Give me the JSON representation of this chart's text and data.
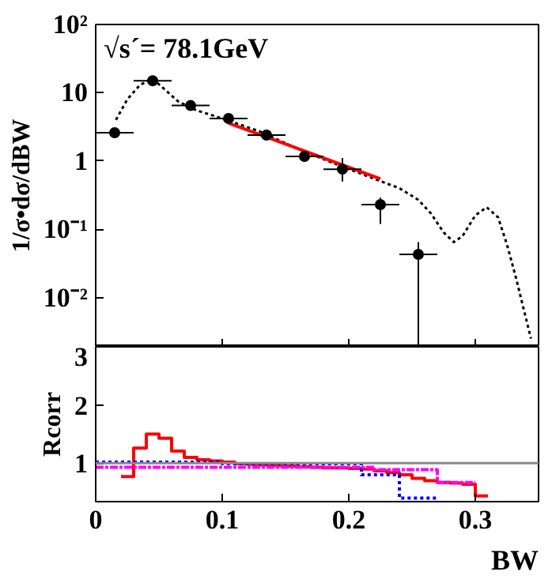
{
  "chart_data": [
    {
      "type": "scatter",
      "ylabel": "1/σ•dσ/dBW",
      "annotations": [
        "√s´= 78.1GeV"
      ],
      "log": "y",
      "xlim": [
        0,
        0.35
      ],
      "ylim": [
        0.0019,
        100
      ],
      "yticks": [
        {
          "value": 0.01,
          "label": "10⁻²"
        },
        {
          "value": 0.1,
          "label": "10⁻¹"
        },
        1,
        10,
        {
          "value": 100,
          "label": "10²"
        }
      ],
      "xticks": [
        {
          "value": 0,
          "label": null
        },
        {
          "value": 0.1,
          "label": null
        },
        {
          "value": 0.2,
          "label": null
        },
        {
          "value": 0.3,
          "label": null
        }
      ],
      "tick_labels": "y",
      "series": [
        {
          "type": "line",
          "color": "#000000",
          "line_style": "dotted",
          "x": [
            0.016,
            0.025,
            0.035,
            0.045,
            0.055,
            0.065,
            0.08,
            0.095,
            0.105,
            0.13,
            0.16,
            0.19,
            0.22,
            0.24,
            0.255,
            0.265,
            0.275,
            0.283,
            0.29,
            0.3,
            0.309,
            0.318,
            0.325,
            0.332,
            0.336,
            0.34,
            0.344
          ],
          "values": [
            4.0,
            8,
            13,
            16,
            11,
            7.5,
            5.5,
            4.5,
            3.9,
            2.7,
            1.5,
            0.9,
            0.55,
            0.4,
            0.27,
            0.17,
            0.09,
            0.065,
            0.08,
            0.16,
            0.21,
            0.15,
            0.06,
            0.02,
            0.01,
            0.005,
            0.0025
          ]
        },
        {
          "type": "line",
          "color": "#ff0000",
          "line_style": "solid",
          "x": [
            0.105,
            0.225
          ],
          "values": [
            3.6,
            0.55
          ]
        },
        {
          "type": "scatter",
          "color": "#000000",
          "marker": "circle",
          "x": [
            0.015,
            0.045,
            0.075,
            0.105,
            0.135,
            0.165,
            0.195,
            0.225,
            0.255
          ],
          "values": [
            2.6,
            15,
            6.5,
            4.2,
            2.4,
            1.17,
            0.76,
            0.23,
            0.043
          ],
          "xerrors": [
            0.015,
            0.015,
            0.015,
            0.015,
            0.015,
            0.015,
            0.015,
            0.015,
            0.015
          ],
          "errors": [
            null,
            null,
            null,
            null,
            null,
            [
              1.02,
              1.32
            ],
            [
              0.5,
              1.11
            ],
            [
              0.12,
              0.29
            ],
            [
              0.002,
              0.065
            ]
          ]
        }
      ]
    },
    {
      "type": "step",
      "xlabel": "BW",
      "ylabel": "Rcorr",
      "xlim": [
        0,
        0.35
      ],
      "ylim": [
        0.34,
        3
      ],
      "xticks": [
        0,
        0.1,
        0.2,
        0.3
      ],
      "yticks": [
        1,
        2,
        3
      ],
      "ref_lines": [
        {
          "axis": "y",
          "value": 1,
          "color": "#888888"
        }
      ],
      "series": [
        {
          "color": "#ff0000",
          "line_style": "solid",
          "x": [
            0.02,
            0.03,
            0.04,
            0.05,
            0.06,
            0.07,
            0.08,
            0.09,
            0.1,
            0.11,
            0.12,
            0.13,
            0.14,
            0.15,
            0.16,
            0.17,
            0.18,
            0.19,
            0.2,
            0.21,
            0.22,
            0.23,
            0.24,
            0.25,
            0.26,
            0.27,
            0.28,
            0.29,
            0.3,
            0.31
          ],
          "values": [
            0.77,
            1.26,
            1.5,
            1.43,
            1.21,
            1.1,
            1.06,
            1.04,
            1.02,
            0.99,
            0.98,
            0.97,
            0.96,
            0.95,
            0.94,
            0.93,
            0.92,
            0.92,
            0.91,
            0.9,
            0.87,
            0.84,
            0.8,
            0.74,
            0.7,
            0.67,
            0.66,
            0.64,
            0.44,
            0.44
          ]
        },
        {
          "color": "#0000ff",
          "line_style": "dotted",
          "x": [
            0,
            0.1,
            0.21,
            0.24,
            0.27
          ],
          "values": [
            1.02,
            0.99,
            0.8,
            0.4,
            0.4
          ]
        },
        {
          "color": "#ff00ff",
          "line_style": "dashed",
          "x": [
            0,
            0.1,
            0.22,
            0.27,
            0.3
          ],
          "values": [
            0.93,
            0.93,
            0.89,
            0.67,
            0.67
          ]
        }
      ]
    }
  ]
}
